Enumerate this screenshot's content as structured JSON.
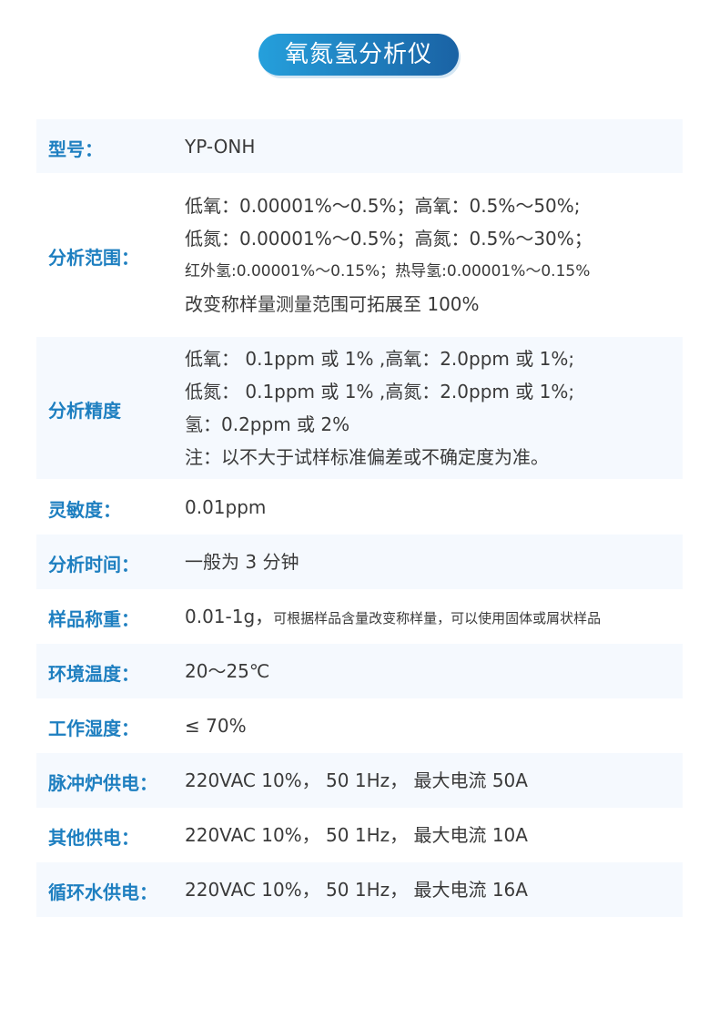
{
  "title": "氧氮氢分析仪",
  "specs": [
    {
      "label": "型号：",
      "lines": [
        "YP-ONH"
      ]
    },
    {
      "label": "分析范围：",
      "lines": [
        "低氧：0.00001%～0.5%；高氧：0.5%～50%;",
        "低氮：0.00001%～0.5%；高氮：0.5%～30%；",
        "红外氢:0.00001%～0.15%；热导氢:0.00001%～0.15%",
        "改变称样量测量范围可拓展至 100%"
      ]
    },
    {
      "label": "分析精度",
      "lines": [
        "低氧： 0.1ppm 或 1% ,高氧：2.0ppm 或 1%;",
        "低氮： 0.1ppm 或 1% ,高氮：2.0ppm 或 1%;",
        "氢：0.2ppm 或 2%",
        "注：以不大于试样标准偏差或不确定度为准。"
      ]
    },
    {
      "label": "灵敏度：",
      "lines": [
        "0.01ppm"
      ]
    },
    {
      "label": "分析时间：",
      "lines": [
        "一般为 3 分钟"
      ]
    },
    {
      "label": "样品称重：",
      "lines": [
        "0.01-1g，"
      ],
      "note": "可根据样品含量改变称样量，可以使用固体或屑状样品"
    },
    {
      "label": "环境温度：",
      "lines": [
        "20～25℃"
      ]
    },
    {
      "label": "工作湿度：",
      "lines": [
        "≤ 70%"
      ]
    },
    {
      "label": "脉冲炉供电：",
      "lines": [
        "220VAC   10%， 50  1Hz， 最大电流 50A"
      ]
    },
    {
      "label": "其他供电：",
      "lines": [
        "220VAC   10%， 50  1Hz， 最大电流 10A"
      ]
    },
    {
      "label": "循环水供电：",
      "lines": [
        "220VAC   10%， 50  1Hz， 最大电流 16A"
      ]
    }
  ]
}
